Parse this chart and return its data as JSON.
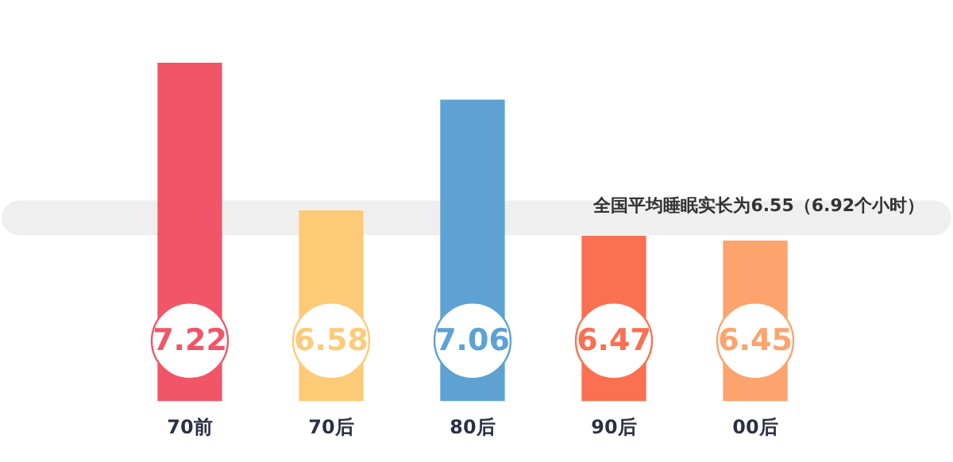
{
  "chart_data": {
    "type": "bar",
    "categories": [
      "70前",
      "70后",
      "80后",
      "90后",
      "00后"
    ],
    "values": [
      7.22,
      6.58,
      7.06,
      6.47,
      6.45
    ],
    "colors": [
      "#f05668",
      "#fdcb78",
      "#5da2d3",
      "#fb7050",
      "#fda36d"
    ],
    "data_labels": true,
    "tick_labels": "x",
    "grid": false,
    "legend": false,
    "ref_lines": [
      {
        "axis": "y",
        "value": 6.55,
        "label": "全国平均睡眠实长为6.55（6.92个小时）",
        "color": "#efefef"
      }
    ]
  }
}
